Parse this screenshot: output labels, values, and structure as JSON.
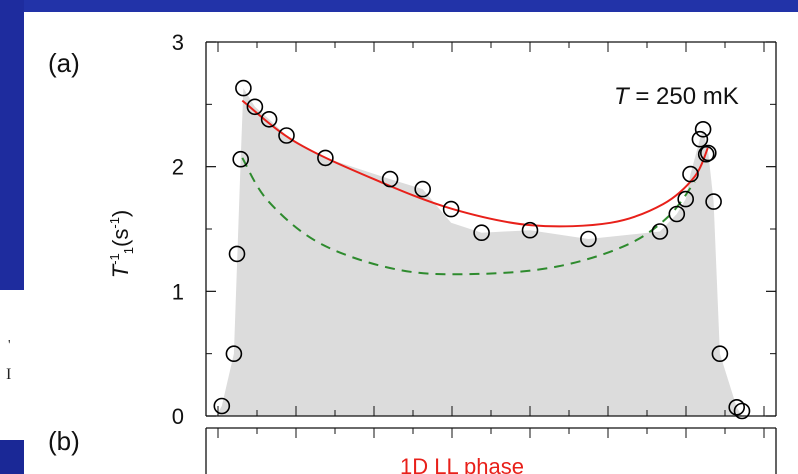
{
  "background": {
    "slide_color": "#1a2896",
    "panel_color": "#ffffff"
  },
  "panel_labels": {
    "a": "(a)",
    "b": "(b)"
  },
  "annotation": {
    "prefix": "T",
    "rest": " = 250 mK"
  },
  "phase_label": "1D LL phase",
  "colors": {
    "fill": "#dcdcdc",
    "solid_line": "#e8201a",
    "dashed_line": "#2e8b2e",
    "markers": "#000000",
    "phase_label": "#e8201a"
  },
  "chart_data": {
    "type": "scatter",
    "title": "",
    "ylabel": "T1^-1 (s^-1)",
    "xlabel": "",
    "ylim": [
      0,
      3
    ],
    "yticks": [
      0,
      1,
      2,
      3
    ],
    "xlim": [
      0,
      1
    ],
    "series": [
      {
        "style": "open-circle markers",
        "x": [
          0.011,
          0.034,
          0.04,
          0.047,
          0.052,
          0.074,
          0.101,
          0.134,
          0.208,
          0.331,
          0.393,
          0.447,
          0.505,
          0.597,
          0.708,
          0.844,
          0.876,
          0.893,
          0.902,
          0.92,
          0.926,
          0.932,
          0.936,
          0.946,
          0.958,
          0.99,
          1.0
        ],
        "y": [
          0.08,
          0.5,
          1.3,
          2.06,
          2.63,
          2.48,
          2.38,
          2.25,
          2.07,
          1.9,
          1.82,
          1.66,
          1.47,
          1.49,
          1.42,
          1.48,
          1.62,
          1.74,
          1.94,
          2.22,
          2.3,
          2.1,
          2.11,
          1.72,
          0.5,
          0.07,
          0.04
        ]
      },
      {
        "style": "solid red line",
        "x": [
          0.05,
          0.15,
          0.3,
          0.45,
          0.6,
          0.75,
          0.85,
          0.91,
          0.935
        ],
        "y": [
          2.53,
          2.2,
          1.9,
          1.66,
          1.53,
          1.55,
          1.7,
          1.92,
          2.15
        ]
      },
      {
        "style": "dashed green line",
        "x": [
          0.05,
          0.1,
          0.2,
          0.35,
          0.5,
          0.65,
          0.78,
          0.86,
          0.91
        ],
        "y": [
          2.07,
          1.72,
          1.38,
          1.17,
          1.14,
          1.2,
          1.37,
          1.6,
          1.88
        ]
      }
    ],
    "shaded_region": {
      "x": [
        0.0,
        0.011,
        0.034,
        0.047,
        0.052,
        0.074,
        0.101,
        0.134,
        0.208,
        0.331,
        0.393,
        0.447,
        0.505,
        0.597,
        0.708,
        0.844,
        0.876,
        0.893,
        0.902,
        0.92,
        0.926,
        0.936,
        0.946,
        0.958,
        0.99,
        1.0
      ],
      "y": [
        0.0,
        0.08,
        0.5,
        2.06,
        2.63,
        2.48,
        2.38,
        2.25,
        2.07,
        1.9,
        1.82,
        1.55,
        1.47,
        1.49,
        1.42,
        1.48,
        1.62,
        1.74,
        1.94,
        2.22,
        2.3,
        2.11,
        1.72,
        0.5,
        0.07,
        0.0
      ]
    },
    "grid": false,
    "legend": "none"
  }
}
